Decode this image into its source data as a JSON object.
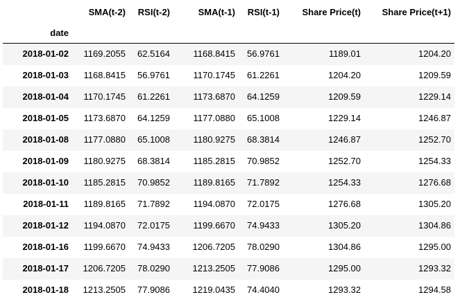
{
  "table": {
    "index_name": "date",
    "columns": [
      "SMA(t-2)",
      "RSI(t-2)",
      "SMA(t-1)",
      "RSI(t-1)",
      "Share Price(t)",
      "Share Price(t+1)"
    ],
    "rows": [
      {
        "date": "2018-01-02",
        "values": [
          "1169.2055",
          "62.5164",
          "1168.8415",
          "56.9761",
          "1189.01",
          "1204.20"
        ]
      },
      {
        "date": "2018-01-03",
        "values": [
          "1168.8415",
          "56.9761",
          "1170.1745",
          "61.2261",
          "1204.20",
          "1209.59"
        ]
      },
      {
        "date": "2018-01-04",
        "values": [
          "1170.1745",
          "61.2261",
          "1173.6870",
          "64.1259",
          "1209.59",
          "1229.14"
        ]
      },
      {
        "date": "2018-01-05",
        "values": [
          "1173.6870",
          "64.1259",
          "1177.0880",
          "65.1008",
          "1229.14",
          "1246.87"
        ]
      },
      {
        "date": "2018-01-08",
        "values": [
          "1177.0880",
          "65.1008",
          "1180.9275",
          "68.3814",
          "1246.87",
          "1252.70"
        ]
      },
      {
        "date": "2018-01-09",
        "values": [
          "1180.9275",
          "68.3814",
          "1185.2815",
          "70.9852",
          "1252.70",
          "1254.33"
        ]
      },
      {
        "date": "2018-01-10",
        "values": [
          "1185.2815",
          "70.9852",
          "1189.8165",
          "71.7892",
          "1254.33",
          "1276.68"
        ]
      },
      {
        "date": "2018-01-11",
        "values": [
          "1189.8165",
          "71.7892",
          "1194.0870",
          "72.0175",
          "1276.68",
          "1305.20"
        ]
      },
      {
        "date": "2018-01-12",
        "values": [
          "1194.0870",
          "72.0175",
          "1199.6670",
          "74.9433",
          "1305.20",
          "1304.86"
        ]
      },
      {
        "date": "2018-01-16",
        "values": [
          "1199.6670",
          "74.9433",
          "1206.7205",
          "78.0290",
          "1304.86",
          "1295.00"
        ]
      },
      {
        "date": "2018-01-17",
        "values": [
          "1206.7205",
          "78.0290",
          "1213.2505",
          "77.9086",
          "1295.00",
          "1293.32"
        ]
      },
      {
        "date": "2018-01-18",
        "values": [
          "1213.2505",
          "77.9086",
          "1219.0435",
          "74.4040",
          "1293.32",
          "1294.58"
        ]
      }
    ]
  },
  "colors": {
    "row_stripe": "#f5f5f5",
    "background": "#ffffff",
    "text": "#000000"
  }
}
